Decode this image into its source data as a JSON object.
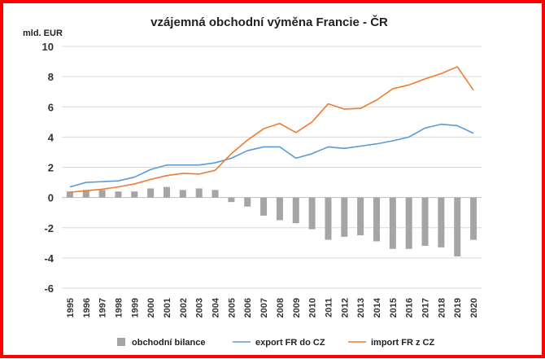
{
  "chart_data": {
    "type": "bar+line",
    "title": "vzájemná obchodní výměna Francie - ČR",
    "unit_label": "mld. EUR",
    "ylim": [
      -6,
      10
    ],
    "yticks": [
      "10",
      "8",
      "6",
      "4",
      "2",
      "0",
      "-2",
      "-4",
      "-6"
    ],
    "grid": true,
    "legend_position": "bottom",
    "categories": [
      "1995",
      "1996",
      "1997",
      "1998",
      "1999",
      "2000",
      "2001",
      "2002",
      "2003",
      "2004",
      "2005",
      "2006",
      "2007",
      "2008",
      "2009",
      "2010",
      "2011",
      "2012",
      "2013",
      "2014",
      "2015",
      "2016",
      "2017",
      "2018",
      "2019",
      "2020"
    ],
    "series": [
      {
        "name": "obchodní bilance",
        "kind": "bar",
        "color": "#a5a5a5",
        "values": [
          0.4,
          0.5,
          0.5,
          0.4,
          0.4,
          0.6,
          0.7,
          0.5,
          0.6,
          0.5,
          -0.3,
          -0.6,
          -1.2,
          -1.5,
          -1.7,
          -2.1,
          -2.8,
          -2.6,
          -2.5,
          -2.9,
          -3.4,
          -3.4,
          -3.2,
          -3.3,
          -3.9,
          -2.8
        ]
      },
      {
        "name": "export FR do CZ",
        "kind": "line",
        "color": "#5b9bd5",
        "values": [
          0.7,
          1.0,
          1.05,
          1.1,
          1.35,
          1.85,
          2.15,
          2.15,
          2.15,
          2.3,
          2.6,
          3.1,
          3.35,
          3.35,
          2.6,
          2.9,
          3.35,
          3.25,
          3.4,
          3.55,
          3.75,
          4.0,
          4.6,
          4.85,
          4.75,
          4.25
        ]
      },
      {
        "name": "import FR z CZ",
        "kind": "line",
        "color": "#ed7d31",
        "values": [
          0.35,
          0.45,
          0.55,
          0.7,
          0.9,
          1.2,
          1.45,
          1.6,
          1.55,
          1.8,
          2.9,
          3.8,
          4.55,
          4.9,
          4.3,
          5.0,
          6.2,
          5.85,
          5.9,
          6.45,
          7.2,
          7.45,
          7.85,
          8.2,
          8.65,
          7.1
        ]
      }
    ]
  }
}
